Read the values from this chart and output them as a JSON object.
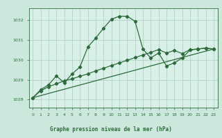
{
  "title": "Graphe pression niveau de la mer (hPa)",
  "background_color": "#cce8dc",
  "plot_bg_color": "#d8f0e8",
  "grid_color": "#aaccbb",
  "line_color": "#2d6b3a",
  "label_bg_color": "#b8d8c8",
  "xlim": [
    -0.5,
    23.5
  ],
  "ylim": [
    1027.6,
    1032.6
  ],
  "yticks": [
    1028,
    1029,
    1030,
    1031,
    1032
  ],
  "xticks": [
    0,
    1,
    2,
    3,
    4,
    5,
    6,
    7,
    8,
    9,
    10,
    11,
    12,
    13,
    14,
    15,
    16,
    17,
    18,
    19,
    20,
    21,
    22,
    23
  ],
  "series_peak_x": [
    0,
    1,
    2,
    3,
    4,
    5,
    6,
    7,
    8,
    9,
    10,
    11,
    12,
    13,
    14,
    15,
    16,
    17,
    18,
    19,
    20,
    21,
    22,
    23
  ],
  "series_peak_y": [
    1028.1,
    1028.5,
    1028.75,
    1029.2,
    1028.85,
    1029.3,
    1029.65,
    1030.65,
    1031.1,
    1031.6,
    1032.05,
    1032.2,
    1032.2,
    1031.95,
    1030.55,
    1030.1,
    1030.35,
    1029.7,
    1029.85,
    1030.1,
    1030.5,
    1030.55,
    1030.6,
    1030.55
  ],
  "series_line1_x": [
    0,
    1,
    2,
    3,
    4,
    5,
    6,
    7,
    8,
    9,
    10,
    11,
    12,
    13,
    14,
    15,
    16,
    17,
    18,
    19,
    20,
    21,
    22,
    23
  ],
  "series_line1_y": [
    1028.1,
    1028.45,
    1028.65,
    1028.8,
    1028.95,
    1029.05,
    1029.18,
    1029.3,
    1029.45,
    1029.58,
    1029.72,
    1029.85,
    1029.98,
    1030.12,
    1030.25,
    1030.38,
    1030.52,
    1030.35,
    1030.48,
    1030.32,
    1030.52,
    1030.55,
    1030.6,
    1030.55
  ],
  "series_line2_x": [
    0,
    23
  ],
  "series_line2_y": [
    1028.1,
    1030.55
  ],
  "marker": "D",
  "markersize": 2.2,
  "linewidth": 0.9
}
